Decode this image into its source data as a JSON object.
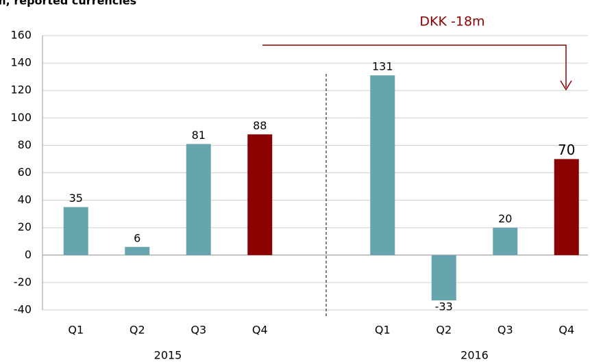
{
  "chart_data": {
    "type": "bar",
    "title": "m, reported currencies",
    "annotation": "DKK -18m",
    "categories": [
      "Q1",
      "Q2",
      "Q3",
      "Q4",
      null,
      "Q1",
      "Q2",
      "Q3",
      "Q4"
    ],
    "values": [
      35,
      6,
      81,
      88,
      null,
      131,
      -33,
      20,
      70
    ],
    "colors": [
      "#66a5ad",
      "#66a5ad",
      "#66a5ad",
      "#8b0000",
      null,
      "#66a5ad",
      "#66a5ad",
      "#66a5ad",
      "#8b0000"
    ],
    "group_labels": [
      "2015",
      "2016"
    ],
    "ylim": [
      -40,
      160
    ],
    "yticks": [
      -40,
      -20,
      0,
      20,
      40,
      60,
      80,
      100,
      120,
      140,
      160
    ],
    "grid": true
  }
}
